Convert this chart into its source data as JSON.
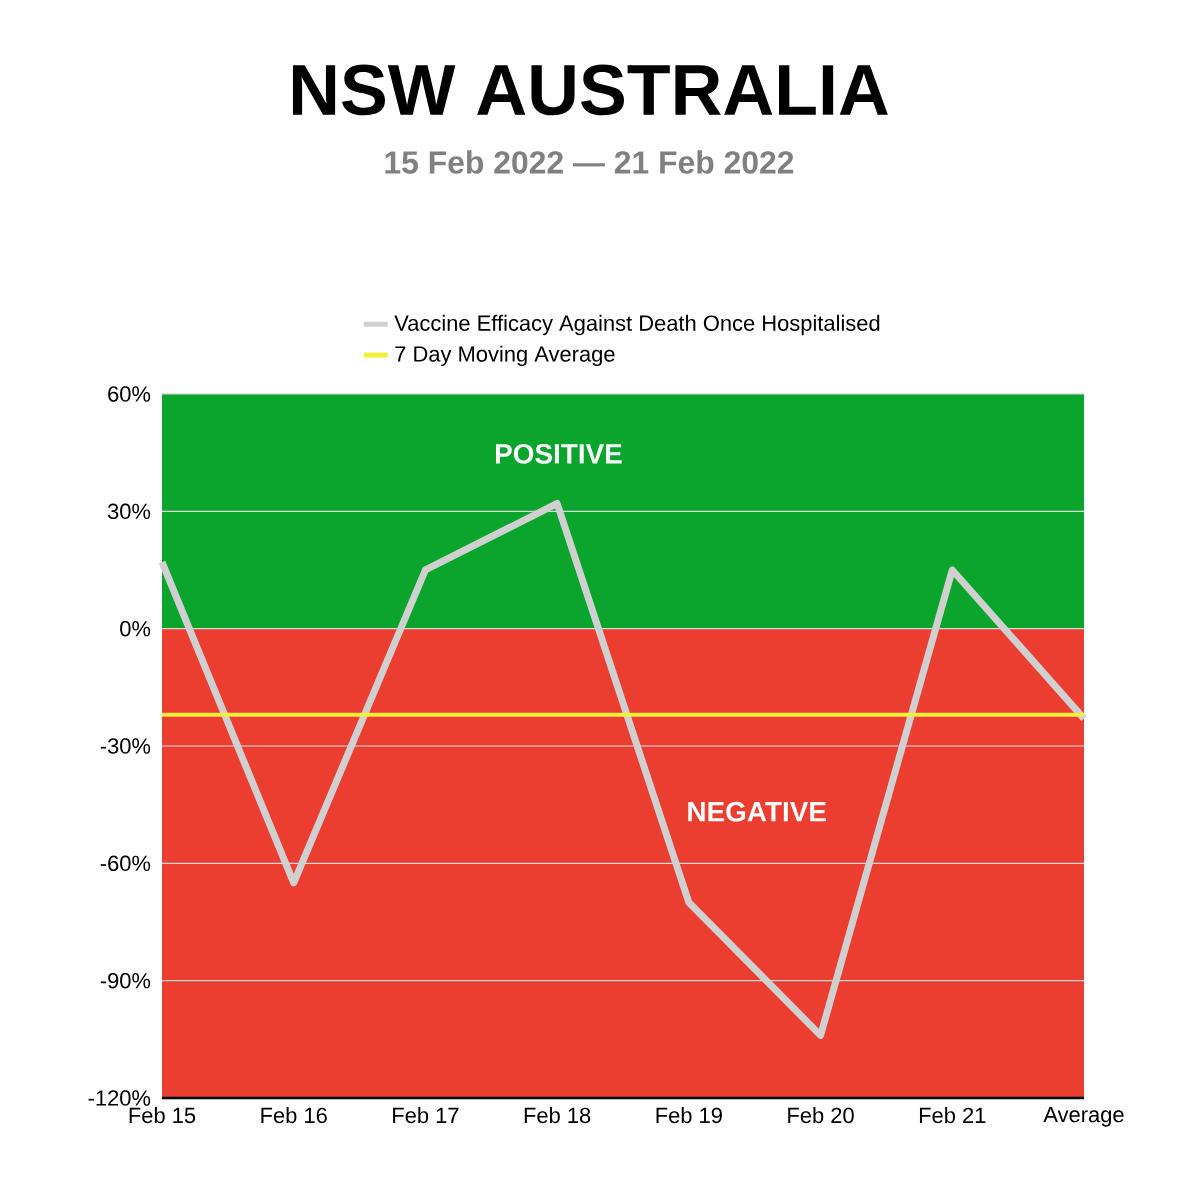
{
  "chart_data": {
    "type": "line",
    "title": "NSW AUSTRALIA",
    "subtitle": "15 Feb 2022 — 21 Feb 2022",
    "categories": [
      "Feb 15",
      "Feb 16",
      "Feb 17",
      "Feb 18",
      "Feb 19",
      "Feb 20",
      "Feb 21",
      "Average"
    ],
    "series": [
      {
        "name": "Vaccine Efficacy Against Death Once Hospitalised",
        "color": "#d0d0d0",
        "values": [
          17,
          -65,
          15,
          32,
          -70,
          -104,
          15,
          -23
        ]
      },
      {
        "name": "7 Day Moving Average",
        "color": "#f5ee3a",
        "values": [
          -22,
          -22,
          -22,
          -22,
          -22,
          -22,
          -22,
          -22
        ]
      }
    ],
    "ylim": [
      -120,
      60
    ],
    "yticks": [
      {
        "value": -120,
        "label": "-120%"
      },
      {
        "value": -90,
        "label": "-90%"
      },
      {
        "value": -60,
        "label": "-60%"
      },
      {
        "value": -30,
        "label": "-30%"
      },
      {
        "value": 0,
        "label": "0%"
      },
      {
        "value": 30,
        "label": "30%"
      },
      {
        "value": 60,
        "label": "60%"
      }
    ],
    "bands": [
      {
        "axis": "y",
        "from": 0,
        "to": 60,
        "label": "POSITIVE",
        "color": "#0aa52c"
      },
      {
        "axis": "y",
        "from": -120,
        "to": 0,
        "label": "NEGATIVE",
        "color": "#ec3d31"
      }
    ],
    "grid": "y",
    "legend": "top",
    "marker": "none",
    "line_style": "solid"
  }
}
